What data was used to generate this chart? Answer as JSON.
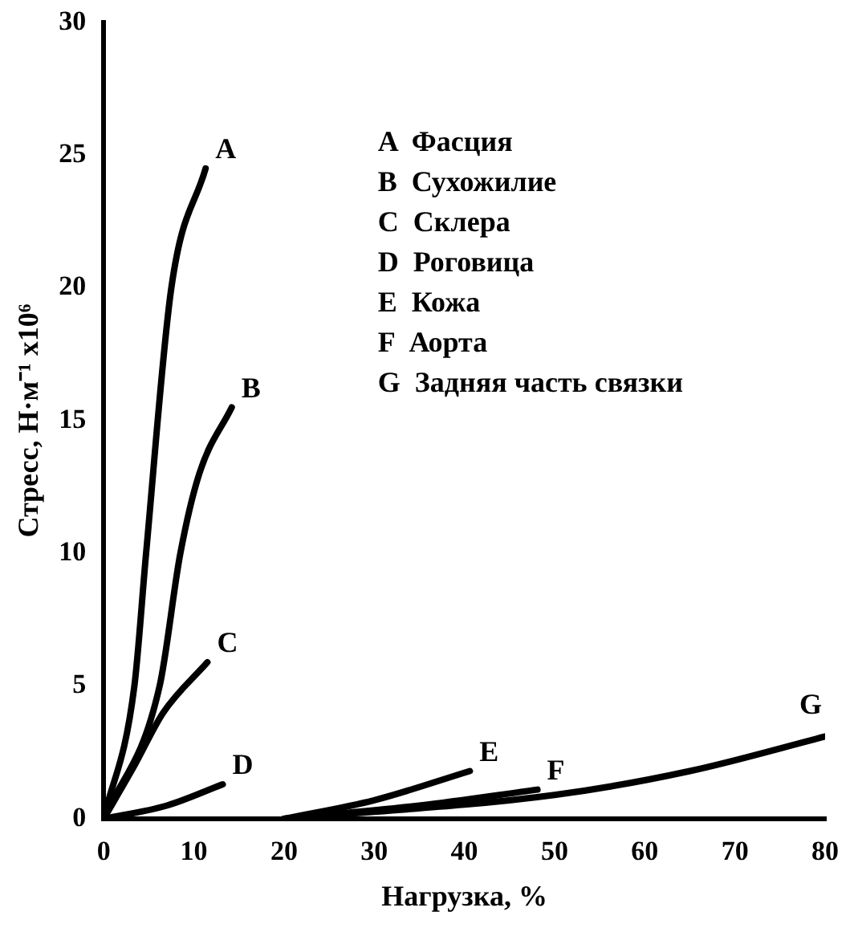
{
  "chart_data": {
    "type": "line",
    "xlabel": "Нагрузка, %",
    "ylabel": "Стресс, Н·м⁻¹ x10⁶",
    "xlim": [
      0,
      80
    ],
    "xticks": [
      0,
      10,
      20,
      30,
      40,
      50,
      60,
      70,
      80
    ],
    "ylim": [
      0,
      30
    ],
    "yticks": [
      0,
      5,
      10,
      15,
      20,
      25,
      30
    ],
    "grid": false,
    "legend": false,
    "marker": "none",
    "line_style": "solid",
    "series": [
      {
        "name": "A",
        "color": "#000000",
        "x": [
          0,
          3.4,
          4.7,
          7.5,
          11.3
        ],
        "values": [
          0,
          5,
          10,
          20,
          24.5
        ]
      },
      {
        "name": "B",
        "color": "#000000",
        "x": [
          0,
          6.2,
          8.5,
          10.6,
          14.2
        ],
        "values": [
          0,
          5,
          10,
          13,
          15.5
        ]
      },
      {
        "name": "C",
        "color": "#000000",
        "x": [
          0,
          3.4,
          6.6,
          11.5
        ],
        "values": [
          0,
          2,
          4,
          5.9
        ]
      },
      {
        "name": "D",
        "color": "#000000",
        "x": [
          0,
          7,
          13.2
        ],
        "values": [
          0,
          0.5,
          1.3
        ]
      },
      {
        "name": "E",
        "color": "#000000",
        "x": [
          20,
          30,
          40.6
        ],
        "values": [
          0,
          0.7,
          1.8
        ]
      },
      {
        "name": "F",
        "color": "#000000",
        "x": [
          20,
          35,
          48.1
        ],
        "values": [
          0,
          0.5,
          1.1
        ]
      },
      {
        "name": "G",
        "color": "#000000",
        "x": [
          20,
          50,
          65,
          80
        ],
        "values": [
          0,
          0.9,
          1.8,
          3.1
        ]
      }
    ],
    "annotations": [
      "A  Фасция",
      "B  Сухожилие",
      "C  Склера",
      "D  Роговица",
      "E  Кожа",
      "F  Аорта",
      "G  Задняя часть связки"
    ]
  }
}
